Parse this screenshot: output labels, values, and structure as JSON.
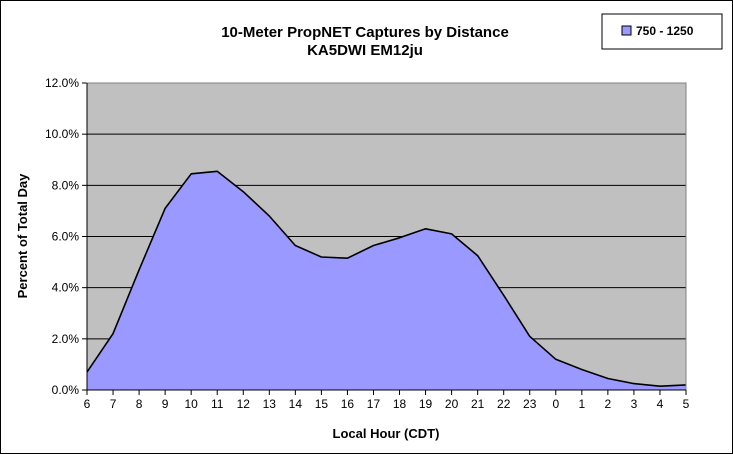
{
  "chart_data": {
    "type": "area",
    "title": "10-Meter PropNET Captures by Distance",
    "subtitle": "KA5DWI EM12ju",
    "xlabel": "Local Hour (CDT)",
    "ylabel": "Percent of Total Day",
    "categories": [
      "6",
      "7",
      "8",
      "9",
      "10",
      "11",
      "12",
      "13",
      "14",
      "15",
      "16",
      "17",
      "18",
      "19",
      "20",
      "21",
      "22",
      "23",
      "0",
      "1",
      "2",
      "3",
      "4",
      "5"
    ],
    "series": [
      {
        "name": "750 - 1250",
        "values": [
          0.7,
          2.2,
          4.7,
          7.1,
          8.45,
          8.55,
          7.75,
          6.8,
          5.65,
          5.2,
          5.15,
          5.65,
          5.95,
          6.3,
          6.1,
          5.25,
          3.7,
          2.1,
          1.2,
          0.8,
          0.45,
          0.25,
          0.15,
          0.2
        ],
        "color": "#9999FF"
      }
    ],
    "yticks": [
      "0.0%",
      "2.0%",
      "4.0%",
      "6.0%",
      "8.0%",
      "10.0%",
      "12.0%"
    ],
    "ylim": [
      0,
      12
    ],
    "grid": true,
    "plot_background": "#C0C0C0",
    "legend_position": "top-right"
  }
}
